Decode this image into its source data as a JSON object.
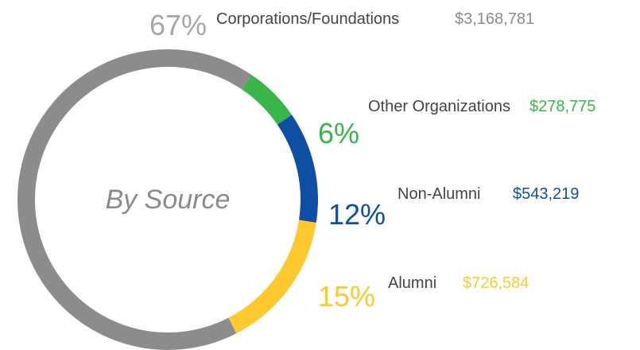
{
  "chart_data": {
    "type": "donut",
    "title": "By Source",
    "categories": [
      "Other Organizations",
      "Non-Alumni",
      "Alumni",
      "Corporations/Foundations"
    ],
    "values": [
      6,
      12,
      15,
      67
    ],
    "value_labels": [
      "6%",
      "12%",
      "15%",
      "67%"
    ],
    "amounts": [
      "$278,775",
      "$543,219",
      "$726,584",
      "$3,168,781"
    ],
    "colors": [
      "#3ab54a",
      "#0f4fa3",
      "#fdc92f",
      "#8c8c8c"
    ]
  }
}
